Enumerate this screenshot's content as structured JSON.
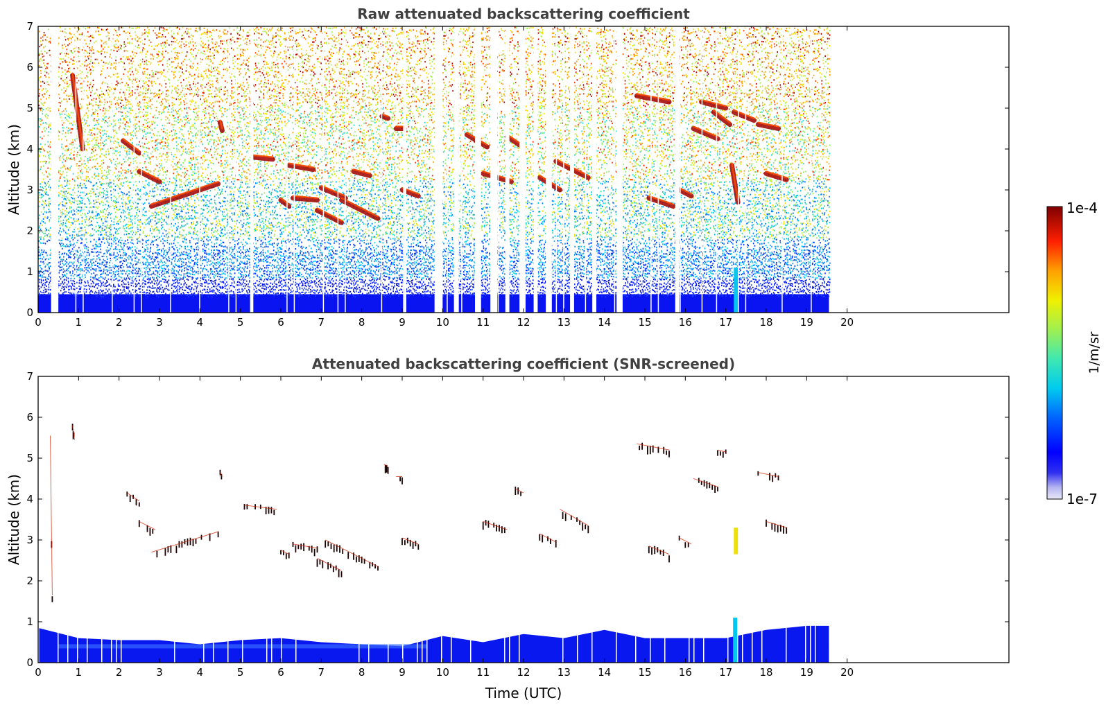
{
  "chart_data": [
    {
      "type": "heatmap",
      "title": "Raw attenuated backscattering coefficient",
      "xlabel": "",
      "ylabel": "Altitude (km)",
      "xlim": [
        0,
        24
      ],
      "ylim": [
        0,
        7
      ],
      "x_ticks": [
        "0",
        "1",
        "2",
        "3",
        "4",
        "5",
        "6",
        "7",
        "8",
        "9",
        "10",
        "11",
        "12",
        "13",
        "14",
        "15",
        "16",
        "17",
        "18",
        "19",
        "20"
      ],
      "y_ticks": [
        "0",
        "1",
        "2",
        "3",
        "4",
        "5",
        "6",
        "7"
      ],
      "data_end_time": 19.55,
      "gaps": [
        [
          0.32,
          0.5
        ],
        [
          5.25,
          5.32
        ],
        [
          9.05,
          9.1
        ],
        [
          9.8,
          10.0
        ],
        [
          10.3,
          10.4
        ],
        [
          10.8,
          10.95
        ],
        [
          11.2,
          11.35
        ],
        [
          11.55,
          11.65
        ],
        [
          11.9,
          12.05
        ],
        [
          12.25,
          12.35
        ],
        [
          12.55,
          12.7
        ],
        [
          13.15,
          13.25
        ],
        [
          13.7,
          13.8
        ],
        [
          14.3,
          14.45
        ],
        [
          15.75,
          15.85
        ]
      ],
      "layers": [
        {
          "t": [
            0.85,
            1.1
          ],
          "z": [
            5.8,
            4.0
          ]
        },
        {
          "t": [
            2.1,
            2.5
          ],
          "z": [
            4.2,
            3.9
          ]
        },
        {
          "t": [
            2.5,
            3.0
          ],
          "z": [
            3.45,
            3.2
          ]
        },
        {
          "t": [
            2.8,
            4.45
          ],
          "z": [
            2.6,
            3.15
          ]
        },
        {
          "t": [
            4.5,
            4.55
          ],
          "z": [
            4.65,
            4.45
          ]
        },
        {
          "t": [
            5.3,
            5.8
          ],
          "z": [
            3.8,
            3.75
          ]
        },
        {
          "t": [
            6.0,
            6.2
          ],
          "z": [
            2.75,
            2.6
          ]
        },
        {
          "t": [
            6.2,
            6.8
          ],
          "z": [
            3.6,
            3.5
          ]
        },
        {
          "t": [
            6.3,
            6.9
          ],
          "z": [
            2.8,
            2.75
          ]
        },
        {
          "t": [
            6.9,
            7.5
          ],
          "z": [
            2.5,
            2.2
          ]
        },
        {
          "t": [
            7.0,
            7.6
          ],
          "z": [
            3.05,
            2.8
          ]
        },
        {
          "t": [
            7.5,
            8.4
          ],
          "z": [
            2.75,
            2.3
          ]
        },
        {
          "t": [
            7.8,
            8.2
          ],
          "z": [
            3.45,
            3.35
          ]
        },
        {
          "t": [
            8.5,
            8.65
          ],
          "z": [
            4.8,
            4.75
          ]
        },
        {
          "t": [
            8.85,
            9.05
          ],
          "z": [
            4.5,
            4.5
          ]
        },
        {
          "t": [
            9.0,
            9.4
          ],
          "z": [
            3.0,
            2.85
          ]
        },
        {
          "t": [
            10.6,
            11.1
          ],
          "z": [
            4.35,
            4.05
          ]
        },
        {
          "t": [
            11.0,
            11.7
          ],
          "z": [
            3.4,
            3.2
          ]
        },
        {
          "t": [
            11.6,
            11.9
          ],
          "z": [
            4.3,
            4.1
          ]
        },
        {
          "t": [
            12.4,
            12.9
          ],
          "z": [
            3.3,
            3.0
          ]
        },
        {
          "t": [
            12.8,
            13.6
          ],
          "z": [
            3.7,
            3.3
          ]
        },
        {
          "t": [
            14.8,
            15.6
          ],
          "z": [
            5.3,
            5.15
          ]
        },
        {
          "t": [
            15.1,
            15.7
          ],
          "z": [
            2.8,
            2.6
          ]
        },
        {
          "t": [
            15.85,
            16.15
          ],
          "z": [
            3.0,
            2.85
          ]
        },
        {
          "t": [
            16.2,
            16.8
          ],
          "z": [
            4.5,
            4.25
          ]
        },
        {
          "t": [
            16.4,
            17.0
          ],
          "z": [
            5.15,
            5.0
          ]
        },
        {
          "t": [
            16.7,
            17.1
          ],
          "z": [
            4.9,
            4.6
          ]
        },
        {
          "t": [
            17.15,
            17.3
          ],
          "z": [
            3.6,
            2.7
          ]
        },
        {
          "t": [
            17.2,
            17.7
          ],
          "z": [
            4.9,
            4.7
          ]
        },
        {
          "t": [
            17.8,
            18.3
          ],
          "z": [
            4.6,
            4.5
          ]
        },
        {
          "t": [
            18.0,
            18.5
          ],
          "z": [
            3.4,
            3.25
          ]
        }
      ]
    },
    {
      "type": "heatmap",
      "title": "Attenuated backscattering coefficient (SNR-screened)",
      "xlabel": "Time (UTC)",
      "ylabel": "Altitude (km)",
      "xlim": [
        0,
        24
      ],
      "ylim": [
        0,
        7
      ],
      "x_ticks": [
        "0",
        "1",
        "2",
        "3",
        "4",
        "5",
        "6",
        "7",
        "8",
        "9",
        "10",
        "11",
        "12",
        "13",
        "14",
        "15",
        "16",
        "17",
        "18",
        "19",
        "20"
      ],
      "y_ticks": [
        "0",
        "1",
        "2",
        "3",
        "4",
        "5",
        "6",
        "7"
      ],
      "data_end_time": 19.55,
      "boundary_layer_top": [
        [
          0.0,
          0.85
        ],
        [
          1.0,
          0.6
        ],
        [
          2.0,
          0.55
        ],
        [
          3.0,
          0.55
        ],
        [
          4.0,
          0.45
        ],
        [
          5.0,
          0.55
        ],
        [
          6.0,
          0.6
        ],
        [
          7.0,
          0.5
        ],
        [
          8.0,
          0.45
        ],
        [
          9.0,
          0.4
        ],
        [
          10.0,
          0.65
        ],
        [
          11.0,
          0.5
        ],
        [
          12.0,
          0.7
        ],
        [
          13.0,
          0.6
        ],
        [
          14.0,
          0.8
        ],
        [
          15.0,
          0.6
        ],
        [
          16.0,
          0.6
        ],
        [
          17.0,
          0.6
        ],
        [
          18.0,
          0.8
        ],
        [
          19.0,
          0.9
        ],
        [
          19.55,
          0.9
        ]
      ],
      "layers": [
        {
          "t": [
            0.3,
            0.35
          ],
          "z": [
            5.5,
            1.6
          ]
        },
        {
          "t": [
            0.85,
            0.9
          ],
          "z": [
            5.75,
            5.4
          ]
        },
        {
          "t": [
            2.2,
            2.5
          ],
          "z": [
            4.1,
            3.9
          ]
        },
        {
          "t": [
            2.5,
            2.9
          ],
          "z": [
            3.4,
            3.2
          ]
        },
        {
          "t": [
            2.8,
            4.45
          ],
          "z": [
            2.65,
            3.15
          ]
        },
        {
          "t": [
            4.5,
            4.55
          ],
          "z": [
            4.6,
            4.5
          ]
        },
        {
          "t": [
            5.1,
            5.9
          ],
          "z": [
            3.8,
            3.7
          ]
        },
        {
          "t": [
            6.0,
            6.2
          ],
          "z": [
            2.7,
            2.6
          ]
        },
        {
          "t": [
            6.3,
            6.9
          ],
          "z": [
            2.85,
            2.75
          ]
        },
        {
          "t": [
            6.9,
            7.5
          ],
          "z": [
            2.5,
            2.2
          ]
        },
        {
          "t": [
            7.1,
            7.6
          ],
          "z": [
            2.95,
            2.7
          ]
        },
        {
          "t": [
            7.6,
            8.4
          ],
          "z": [
            2.7,
            2.3
          ]
        },
        {
          "t": [
            8.55,
            8.65
          ],
          "z": [
            4.8,
            4.75
          ]
        },
        {
          "t": [
            8.85,
            9.0
          ],
          "z": [
            4.5,
            4.5
          ]
        },
        {
          "t": [
            9.0,
            9.4
          ],
          "z": [
            3.0,
            2.85
          ]
        },
        {
          "t": [
            11.0,
            11.6
          ],
          "z": [
            3.4,
            3.2
          ]
        },
        {
          "t": [
            11.8,
            12.0
          ],
          "z": [
            4.2,
            4.1
          ]
        },
        {
          "t": [
            12.4,
            12.8
          ],
          "z": [
            3.1,
            2.9
          ]
        },
        {
          "t": [
            12.9,
            13.6
          ],
          "z": [
            3.7,
            3.3
          ]
        },
        {
          "t": [
            14.8,
            15.6
          ],
          "z": [
            5.3,
            5.15
          ]
        },
        {
          "t": [
            15.1,
            15.6
          ],
          "z": [
            2.8,
            2.6
          ]
        },
        {
          "t": [
            15.85,
            16.15
          ],
          "z": [
            3.0,
            2.85
          ]
        },
        {
          "t": [
            16.2,
            16.8
          ],
          "z": [
            4.45,
            4.25
          ]
        },
        {
          "t": [
            16.8,
            17.0
          ],
          "z": [
            5.15,
            5.1
          ]
        },
        {
          "t": [
            17.8,
            18.3
          ],
          "z": [
            4.6,
            4.5
          ]
        },
        {
          "t": [
            18.0,
            18.5
          ],
          "z": [
            3.4,
            3.25
          ]
        }
      ],
      "yellow_plume": {
        "t": [
          17.2,
          17.3
        ],
        "z": [
          3.3,
          2.65
        ]
      }
    }
  ],
  "colorbar": {
    "label": "1/m/sr",
    "top_label": "1e-4",
    "bottom_label": "1e-7",
    "vmin": 1e-07,
    "vmax": 0.0001,
    "scale": "log",
    "colormap": "jet"
  }
}
